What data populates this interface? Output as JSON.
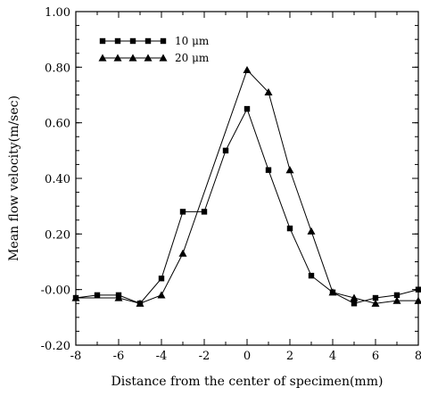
{
  "chart_data": {
    "type": "line",
    "title": "",
    "xlabel": "Distance from the center of specimen(mm)",
    "ylabel": "Mean flow velocity(m/sec)",
    "xlim": [
      -8,
      8
    ],
    "ylim": [
      -0.2,
      1.0
    ],
    "x_ticks": [
      -8,
      -6,
      -4,
      -2,
      0,
      2,
      4,
      6,
      8
    ],
    "x_tick_labels": [
      "-8",
      "-6",
      "-4",
      "-2",
      "0",
      "2",
      "4",
      "6",
      "8"
    ],
    "y_ticks": [
      -0.2,
      0.0,
      0.2,
      0.4,
      0.6,
      0.8,
      1.0
    ],
    "y_tick_labels": [
      "-0.20",
      "-0.00",
      "0.20",
      "0.40",
      "0.60",
      "0.80",
      "1.00"
    ],
    "grid": false,
    "legend_position": "top-left",
    "series": [
      {
        "name": "10 μm",
        "marker": "square",
        "color": "#000000",
        "x": [
          -8,
          -7,
          -6,
          -5,
          -4,
          -3,
          -2,
          -1,
          0,
          1,
          2,
          3,
          4,
          5,
          6,
          7,
          8
        ],
        "y": [
          -0.03,
          -0.02,
          -0.02,
          -0.05,
          0.04,
          0.28,
          0.28,
          0.5,
          0.65,
          0.43,
          0.22,
          0.05,
          -0.01,
          -0.05,
          -0.03,
          -0.02,
          0.0
        ]
      },
      {
        "name": "20 μm",
        "marker": "triangle",
        "color": "#000000",
        "x": [
          -8,
          -6,
          -5,
          -4,
          -3,
          0,
          1,
          2,
          3,
          4,
          5,
          6,
          7,
          8
        ],
        "y": [
          -0.03,
          -0.03,
          -0.05,
          -0.02,
          0.13,
          0.79,
          0.71,
          0.43,
          0.21,
          -0.01,
          -0.03,
          -0.05,
          -0.04,
          -0.04
        ]
      }
    ]
  }
}
